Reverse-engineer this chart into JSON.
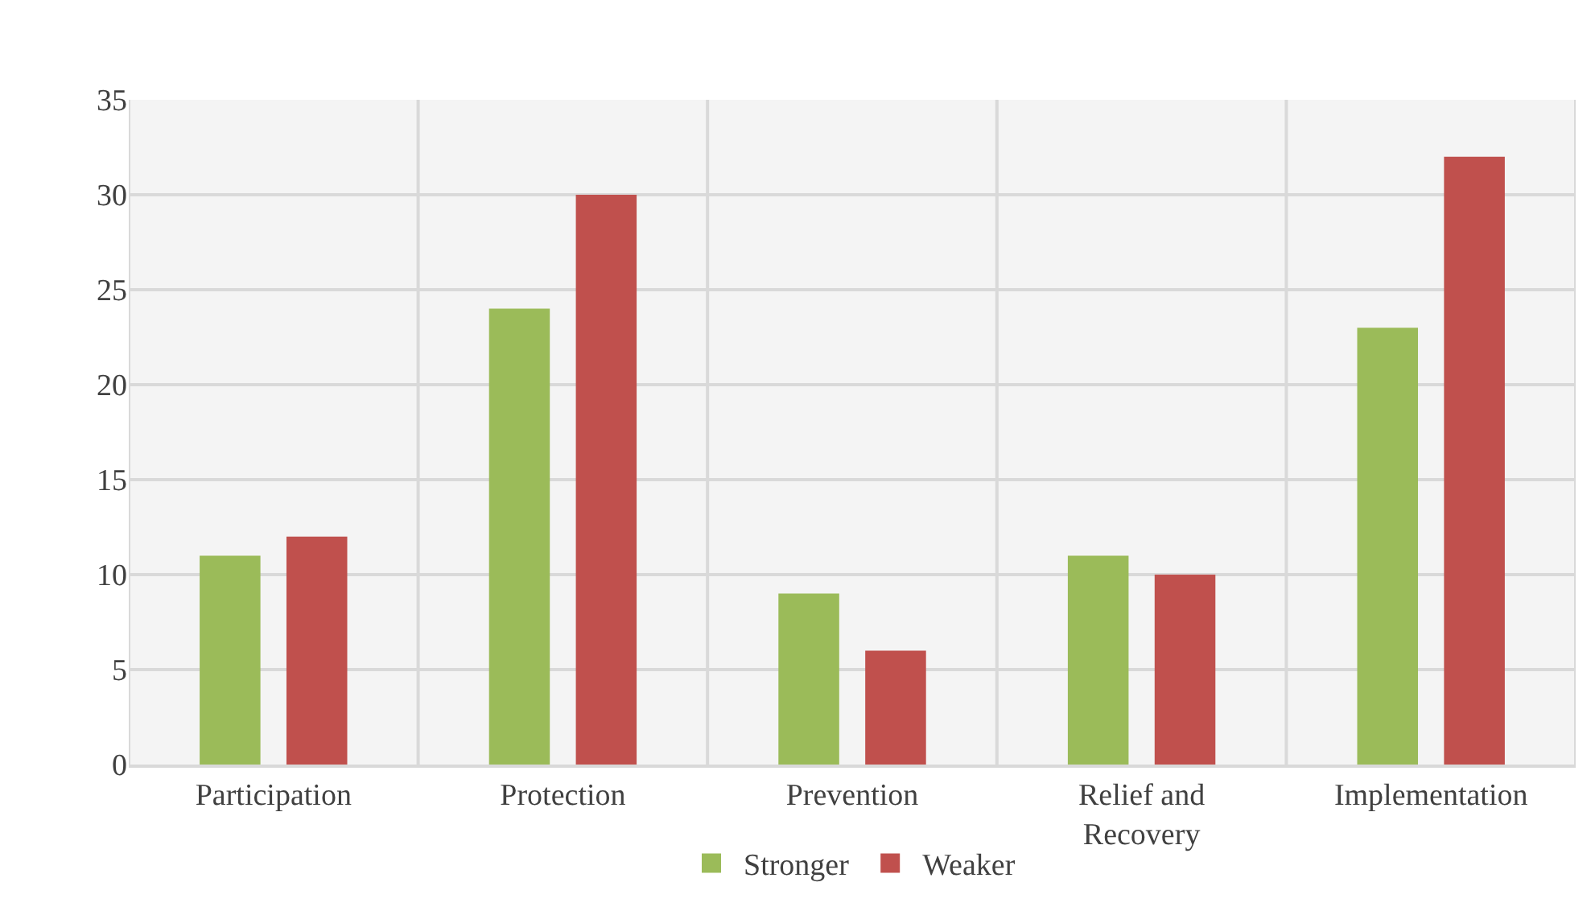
{
  "chart_data": {
    "type": "bar",
    "categories": [
      "Participation",
      "Protection",
      "Prevention",
      "Relief and Recovery",
      "Implementation"
    ],
    "series": [
      {
        "name": "Stronger",
        "color": "#9bbb59",
        "values": [
          11,
          24,
          9,
          11,
          23
        ]
      },
      {
        "name": "Weaker",
        "color": "#c0504d",
        "values": [
          12,
          30,
          6,
          10,
          32
        ]
      }
    ],
    "ylim": [
      0,
      35
    ],
    "yticks": [
      0,
      5,
      10,
      15,
      20,
      25,
      30,
      35
    ],
    "grid": true,
    "legend": "bottom"
  }
}
